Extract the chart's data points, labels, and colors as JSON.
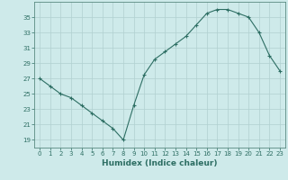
{
  "x": [
    0,
    1,
    2,
    3,
    4,
    5,
    6,
    7,
    8,
    9,
    10,
    11,
    12,
    13,
    14,
    15,
    16,
    17,
    18,
    19,
    20,
    21,
    22,
    23
  ],
  "y": [
    27,
    26,
    25,
    24.5,
    23.5,
    22.5,
    21.5,
    20.5,
    19,
    23.5,
    27.5,
    29.5,
    30.5,
    31.5,
    32.5,
    34,
    35.5,
    36,
    36,
    35.5,
    35,
    33,
    30,
    28
  ],
  "line_color": "#2d6e63",
  "marker": "+",
  "marker_size": 3,
  "marker_linewidth": 0.8,
  "bg_color": "#ceeaea",
  "grid_color": "#b0d0d0",
  "xlabel": "Humidex (Indice chaleur)",
  "ylim": [
    18,
    37
  ],
  "yticks": [
    19,
    21,
    23,
    25,
    27,
    29,
    31,
    33,
    35
  ],
  "xlim": [
    -0.5,
    23.5
  ],
  "tick_color": "#2d6e63",
  "label_color": "#2d6e63",
  "spine_color": "#5a8a80",
  "xlabel_fontsize": 6.5,
  "tick_fontsize": 5
}
